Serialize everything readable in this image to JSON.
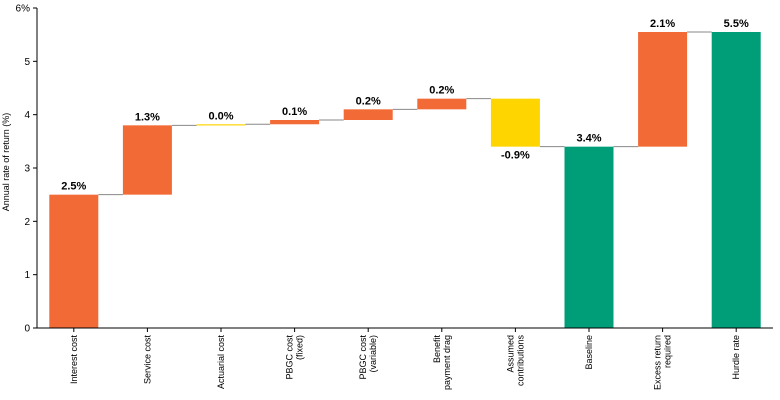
{
  "chart_data": {
    "type": "bar",
    "subtype": "waterfall",
    "title": "",
    "xlabel": "",
    "ylabel": "Annual rate of return (%)",
    "ylim": [
      0,
      6
    ],
    "yticks": [
      0,
      1,
      2,
      3,
      4,
      5,
      6
    ],
    "ytick_labels": [
      "0",
      "1",
      "2",
      "3",
      "4",
      "5",
      "6%"
    ],
    "grid": false,
    "legend": "none",
    "categories": [
      [
        "Interest cost"
      ],
      [
        "Service cost"
      ],
      [
        "Actuarial cost"
      ],
      [
        "PBGC cost",
        "(fixed)"
      ],
      [
        "PBGC cost",
        "(variable)"
      ],
      [
        "Benefit",
        "payment drag"
      ],
      [
        "Assumed",
        "contributions"
      ],
      [
        "Baseline"
      ],
      [
        "Excess return",
        "required"
      ],
      [
        "Hurdle rate"
      ]
    ],
    "bars": [
      {
        "start": 0,
        "end": 2.5,
        "label": "2.5%",
        "color": "#F26A36"
      },
      {
        "start": 2.5,
        "end": 3.8,
        "label": "1.3%",
        "color": "#F26A36"
      },
      {
        "start": 3.8,
        "end": 3.82,
        "label": "0.0%",
        "color": "#FFD500"
      },
      {
        "start": 3.82,
        "end": 3.9,
        "label": "0.1%",
        "color": "#F26A36"
      },
      {
        "start": 3.9,
        "end": 4.1,
        "label": "0.2%",
        "color": "#F26A36"
      },
      {
        "start": 4.1,
        "end": 4.3,
        "label": "0.2%",
        "color": "#F26A36"
      },
      {
        "start": 4.3,
        "end": 3.4,
        "label": "-0.9%",
        "color": "#FFD500"
      },
      {
        "start": 0,
        "end": 3.4,
        "label": "3.4%",
        "color": "#009E78"
      },
      {
        "start": 3.4,
        "end": 5.55,
        "label": "2.1%",
        "color": "#F26A36"
      },
      {
        "start": 0,
        "end": 5.55,
        "label": "5.5%",
        "color": "#009E78"
      }
    ],
    "connector_color": "#888888"
  }
}
